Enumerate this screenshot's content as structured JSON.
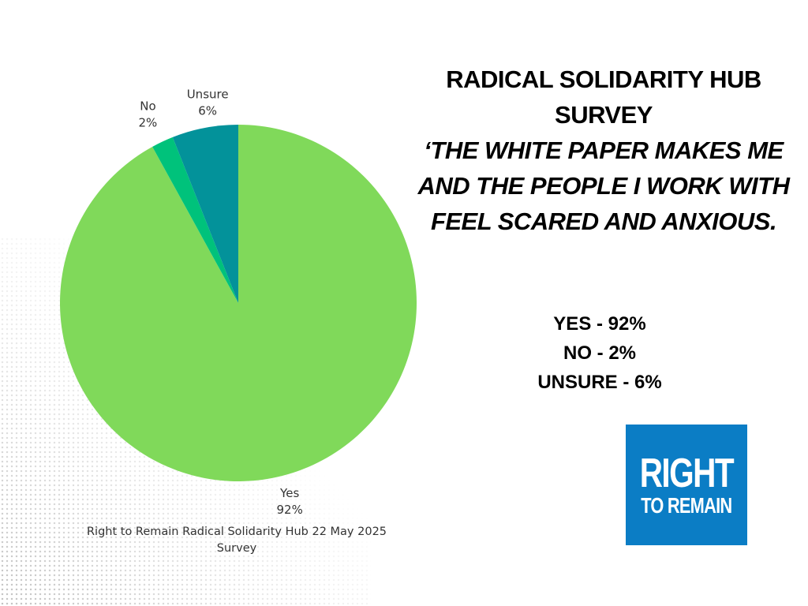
{
  "headline": {
    "hub": "RADICAL SOLIDARITY HUB SURVEY",
    "quote": "‘THE WHITE PAPER MAKES ME AND THE PEOPLE I WORK WITH FEEL SCARED AND ANXIOUS."
  },
  "results": [
    "YES - 92%",
    "NO - 2%",
    "UNSURE - 6%"
  ],
  "logo": {
    "line1": "RIGHT",
    "line2": "TO REMAIN"
  },
  "colors": {
    "yes": "#80d95a",
    "no": "#00c27b",
    "unsure": "#03929a",
    "logo_bg": "#0b7dc5"
  },
  "chart_data": {
    "type": "pie",
    "categories": [
      "Yes",
      "No",
      "Unsure"
    ],
    "values": [
      92,
      2,
      6
    ],
    "labels": [
      "92%",
      "2%",
      "6%"
    ],
    "caption": "Right to Remain Radical Solidarity Hub 22 May 2025 Survey"
  }
}
